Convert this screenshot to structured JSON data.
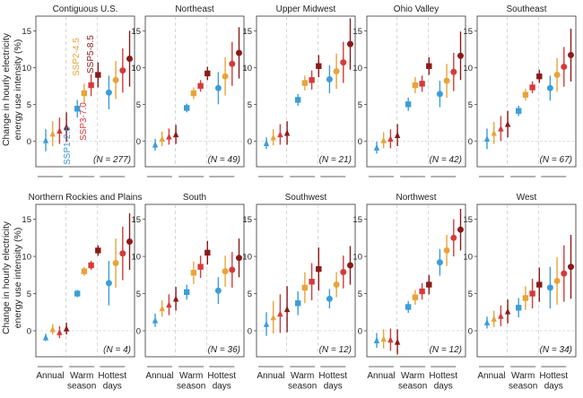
{
  "ylabel": "Change in hourly electricity\nenergy use intensity (%)",
  "chart_data": {
    "type": "scatter",
    "yticks": [
      0,
      5,
      10,
      15
    ],
    "ylim": [
      -3.5,
      17
    ],
    "groups": [
      {
        "label": "Annual",
        "marker": "triangle"
      },
      {
        "label": "Warm\nseason",
        "marker": "square"
      },
      {
        "label": "Hottest\ndays",
        "marker": "circle"
      }
    ],
    "scenarios": [
      {
        "name": "SSP1-2.6",
        "color": "#3d9dd9"
      },
      {
        "name": "SSP2-4.5",
        "color": "#e8a43a"
      },
      {
        "name": "SSP3-7.0",
        "color": "#d63a3a"
      },
      {
        "name": "SSP5-8.5",
        "color": "#8b1a1a"
      }
    ],
    "panels": [
      {
        "title": "Contiguous U.S.",
        "n": "(N = 277)",
        "values": [
          [
            0.1,
            1.0,
            1.4,
            1.9
          ],
          [
            4.4,
            6.5,
            7.6,
            9.0
          ],
          [
            6.6,
            8.3,
            9.6,
            11.2
          ]
        ],
        "err": [
          [
            1.5,
            1.7,
            1.8,
            2.0
          ],
          [
            1.2,
            1.3,
            1.5,
            1.7
          ],
          [
            2.3,
            2.6,
            3.0,
            3.8
          ]
        ]
      },
      {
        "title": "Northeast",
        "n": "(N = 49)",
        "values": [
          [
            -0.5,
            0.3,
            0.6,
            0.9
          ],
          [
            4.5,
            6.5,
            7.5,
            9.2
          ],
          [
            7.2,
            8.8,
            10.5,
            12.0
          ]
        ],
        "err": [
          [
            0.8,
            1.0,
            1.1,
            1.3
          ],
          [
            0.6,
            0.8,
            0.8,
            0.9
          ],
          [
            2.2,
            2.6,
            3.0,
            3.5
          ]
        ]
      },
      {
        "title": "Upper Midwest",
        "n": "(N = 21)",
        "values": [
          [
            -0.3,
            0.5,
            0.9,
            1.1
          ],
          [
            5.6,
            7.9,
            8.3,
            10.2
          ],
          [
            8.4,
            9.5,
            10.7,
            13.2
          ]
        ],
        "err": [
          [
            0.8,
            1.1,
            1.4,
            1.6
          ],
          [
            0.8,
            1.0,
            1.3,
            1.5
          ],
          [
            1.9,
            2.4,
            2.8,
            3.5
          ]
        ]
      },
      {
        "title": "Ohio Valley",
        "n": "(N = 42)",
        "values": [
          [
            -0.9,
            0.1,
            0.3,
            0.8
          ],
          [
            5.0,
            7.6,
            7.8,
            10.2
          ],
          [
            6.4,
            8.2,
            9.4,
            11.6
          ]
        ],
        "err": [
          [
            0.8,
            1.1,
            1.3,
            1.5
          ],
          [
            0.9,
            1.1,
            1.1,
            1.2
          ],
          [
            1.8,
            2.3,
            2.6,
            3.3
          ]
        ]
      },
      {
        "title": "Southeast",
        "n": "(N = 67)",
        "values": [
          [
            0.3,
            1.1,
            1.7,
            2.3
          ],
          [
            4.1,
            6.3,
            7.3,
            8.8
          ],
          [
            7.2,
            9.0,
            10.1,
            11.7
          ]
        ],
        "err": [
          [
            1.4,
            1.5,
            1.7,
            1.8
          ],
          [
            0.7,
            0.8,
            0.8,
            0.9
          ],
          [
            1.7,
            2.3,
            2.7,
            3.6
          ]
        ]
      },
      {
        "title": "Northern Rockies and Plains",
        "n": "(N = 4)",
        "values": [
          [
            -0.9,
            0.2,
            -0.2,
            0.3
          ],
          [
            5.0,
            8.0,
            8.8,
            10.8
          ],
          [
            6.4,
            9.1,
            10.4,
            12.0
          ]
        ],
        "err": [
          [
            0.5,
            0.7,
            0.8,
            0.8
          ],
          [
            0.5,
            0.6,
            0.6,
            0.7
          ],
          [
            3.0,
            3.3,
            3.6,
            3.8
          ]
        ]
      },
      {
        "title": "South",
        "n": "(N = 36)",
        "values": [
          [
            1.4,
            3.0,
            3.5,
            4.3
          ],
          [
            5.2,
            7.8,
            8.6,
            10.5
          ],
          [
            5.4,
            8.0,
            8.2,
            9.8
          ]
        ],
        "err": [
          [
            0.9,
            1.1,
            1.4,
            1.6
          ],
          [
            1.0,
            1.5,
            1.5,
            1.6
          ],
          [
            1.8,
            2.1,
            2.4,
            2.6
          ]
        ]
      },
      {
        "title": "Southwest",
        "n": "(N = 12)",
        "values": [
          [
            0.9,
            1.8,
            2.3,
            2.9
          ],
          [
            3.7,
            5.8,
            6.6,
            8.3
          ],
          [
            4.3,
            6.2,
            7.9,
            8.8
          ]
        ],
        "err": [
          [
            1.6,
            2.2,
            2.6,
            3.1
          ],
          [
            1.6,
            2.1,
            2.5,
            2.9
          ],
          [
            1.3,
            1.7,
            2.2,
            2.6
          ]
        ]
      },
      {
        "title": "Northwest",
        "n": "(N = 12)",
        "values": [
          [
            -1.3,
            -1.1,
            -1.2,
            -1.5
          ],
          [
            3.2,
            4.5,
            5.3,
            6.2
          ],
          [
            9.2,
            10.8,
            12.5,
            13.6
          ]
        ],
        "err": [
          [
            1.0,
            1.3,
            1.5,
            1.7
          ],
          [
            0.8,
            1.0,
            1.1,
            1.3
          ],
          [
            1.8,
            2.1,
            2.5,
            2.8
          ]
        ]
      },
      {
        "title": "West",
        "n": "(N = 34)",
        "values": [
          [
            1.1,
            1.6,
            2.0,
            2.6
          ],
          [
            3.1,
            4.4,
            5.0,
            6.2
          ],
          [
            5.8,
            6.7,
            7.7,
            8.6
          ]
        ],
        "err": [
          [
            0.8,
            1.1,
            1.4,
            1.6
          ],
          [
            1.3,
            1.6,
            2.0,
            2.3
          ],
          [
            2.8,
            3.2,
            3.8,
            4.3
          ]
        ]
      }
    ]
  }
}
